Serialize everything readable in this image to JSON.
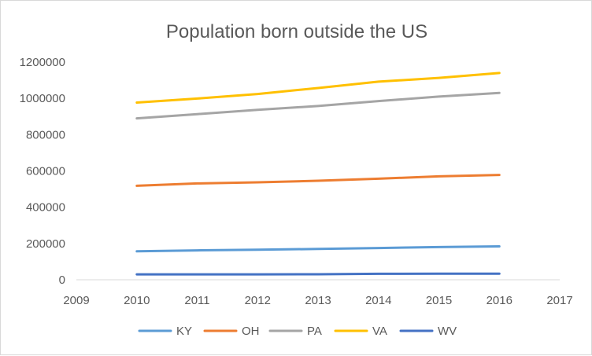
{
  "chart_data": {
    "type": "line",
    "title": "Population born outside the US",
    "xlabel": "",
    "ylabel": "",
    "xlim": [
      2009,
      2017
    ],
    "ylim": [
      0,
      1200000
    ],
    "x_ticks": [
      "2009",
      "2010",
      "2011",
      "2012",
      "2013",
      "2014",
      "2015",
      "2016",
      "2017"
    ],
    "y_ticks": [
      "0",
      "200000",
      "400000",
      "600000",
      "800000",
      "1000000",
      "1200000"
    ],
    "x": [
      2010,
      2011,
      2012,
      2013,
      2014,
      2015,
      2016
    ],
    "series": [
      {
        "name": "KY",
        "color": "#5B9BD5",
        "values": [
          157000,
          162000,
          166000,
          170000,
          175000,
          180000,
          184000
        ]
      },
      {
        "name": "OH",
        "color": "#ED7D31",
        "values": [
          518000,
          531000,
          537000,
          546000,
          557000,
          570000,
          578000
        ]
      },
      {
        "name": "PA",
        "color": "#A5A5A5",
        "values": [
          890000,
          913000,
          937000,
          958000,
          985000,
          1010000,
          1030000
        ]
      },
      {
        "name": "VA",
        "color": "#FFC000",
        "values": [
          977000,
          999000,
          1024000,
          1057000,
          1092000,
          1113000,
          1140000
        ]
      },
      {
        "name": "WV",
        "color": "#4472C4",
        "values": [
          30000,
          30000,
          30000,
          30500,
          33000,
          34000,
          34000
        ]
      }
    ],
    "grid": false,
    "legend_position": "bottom"
  }
}
